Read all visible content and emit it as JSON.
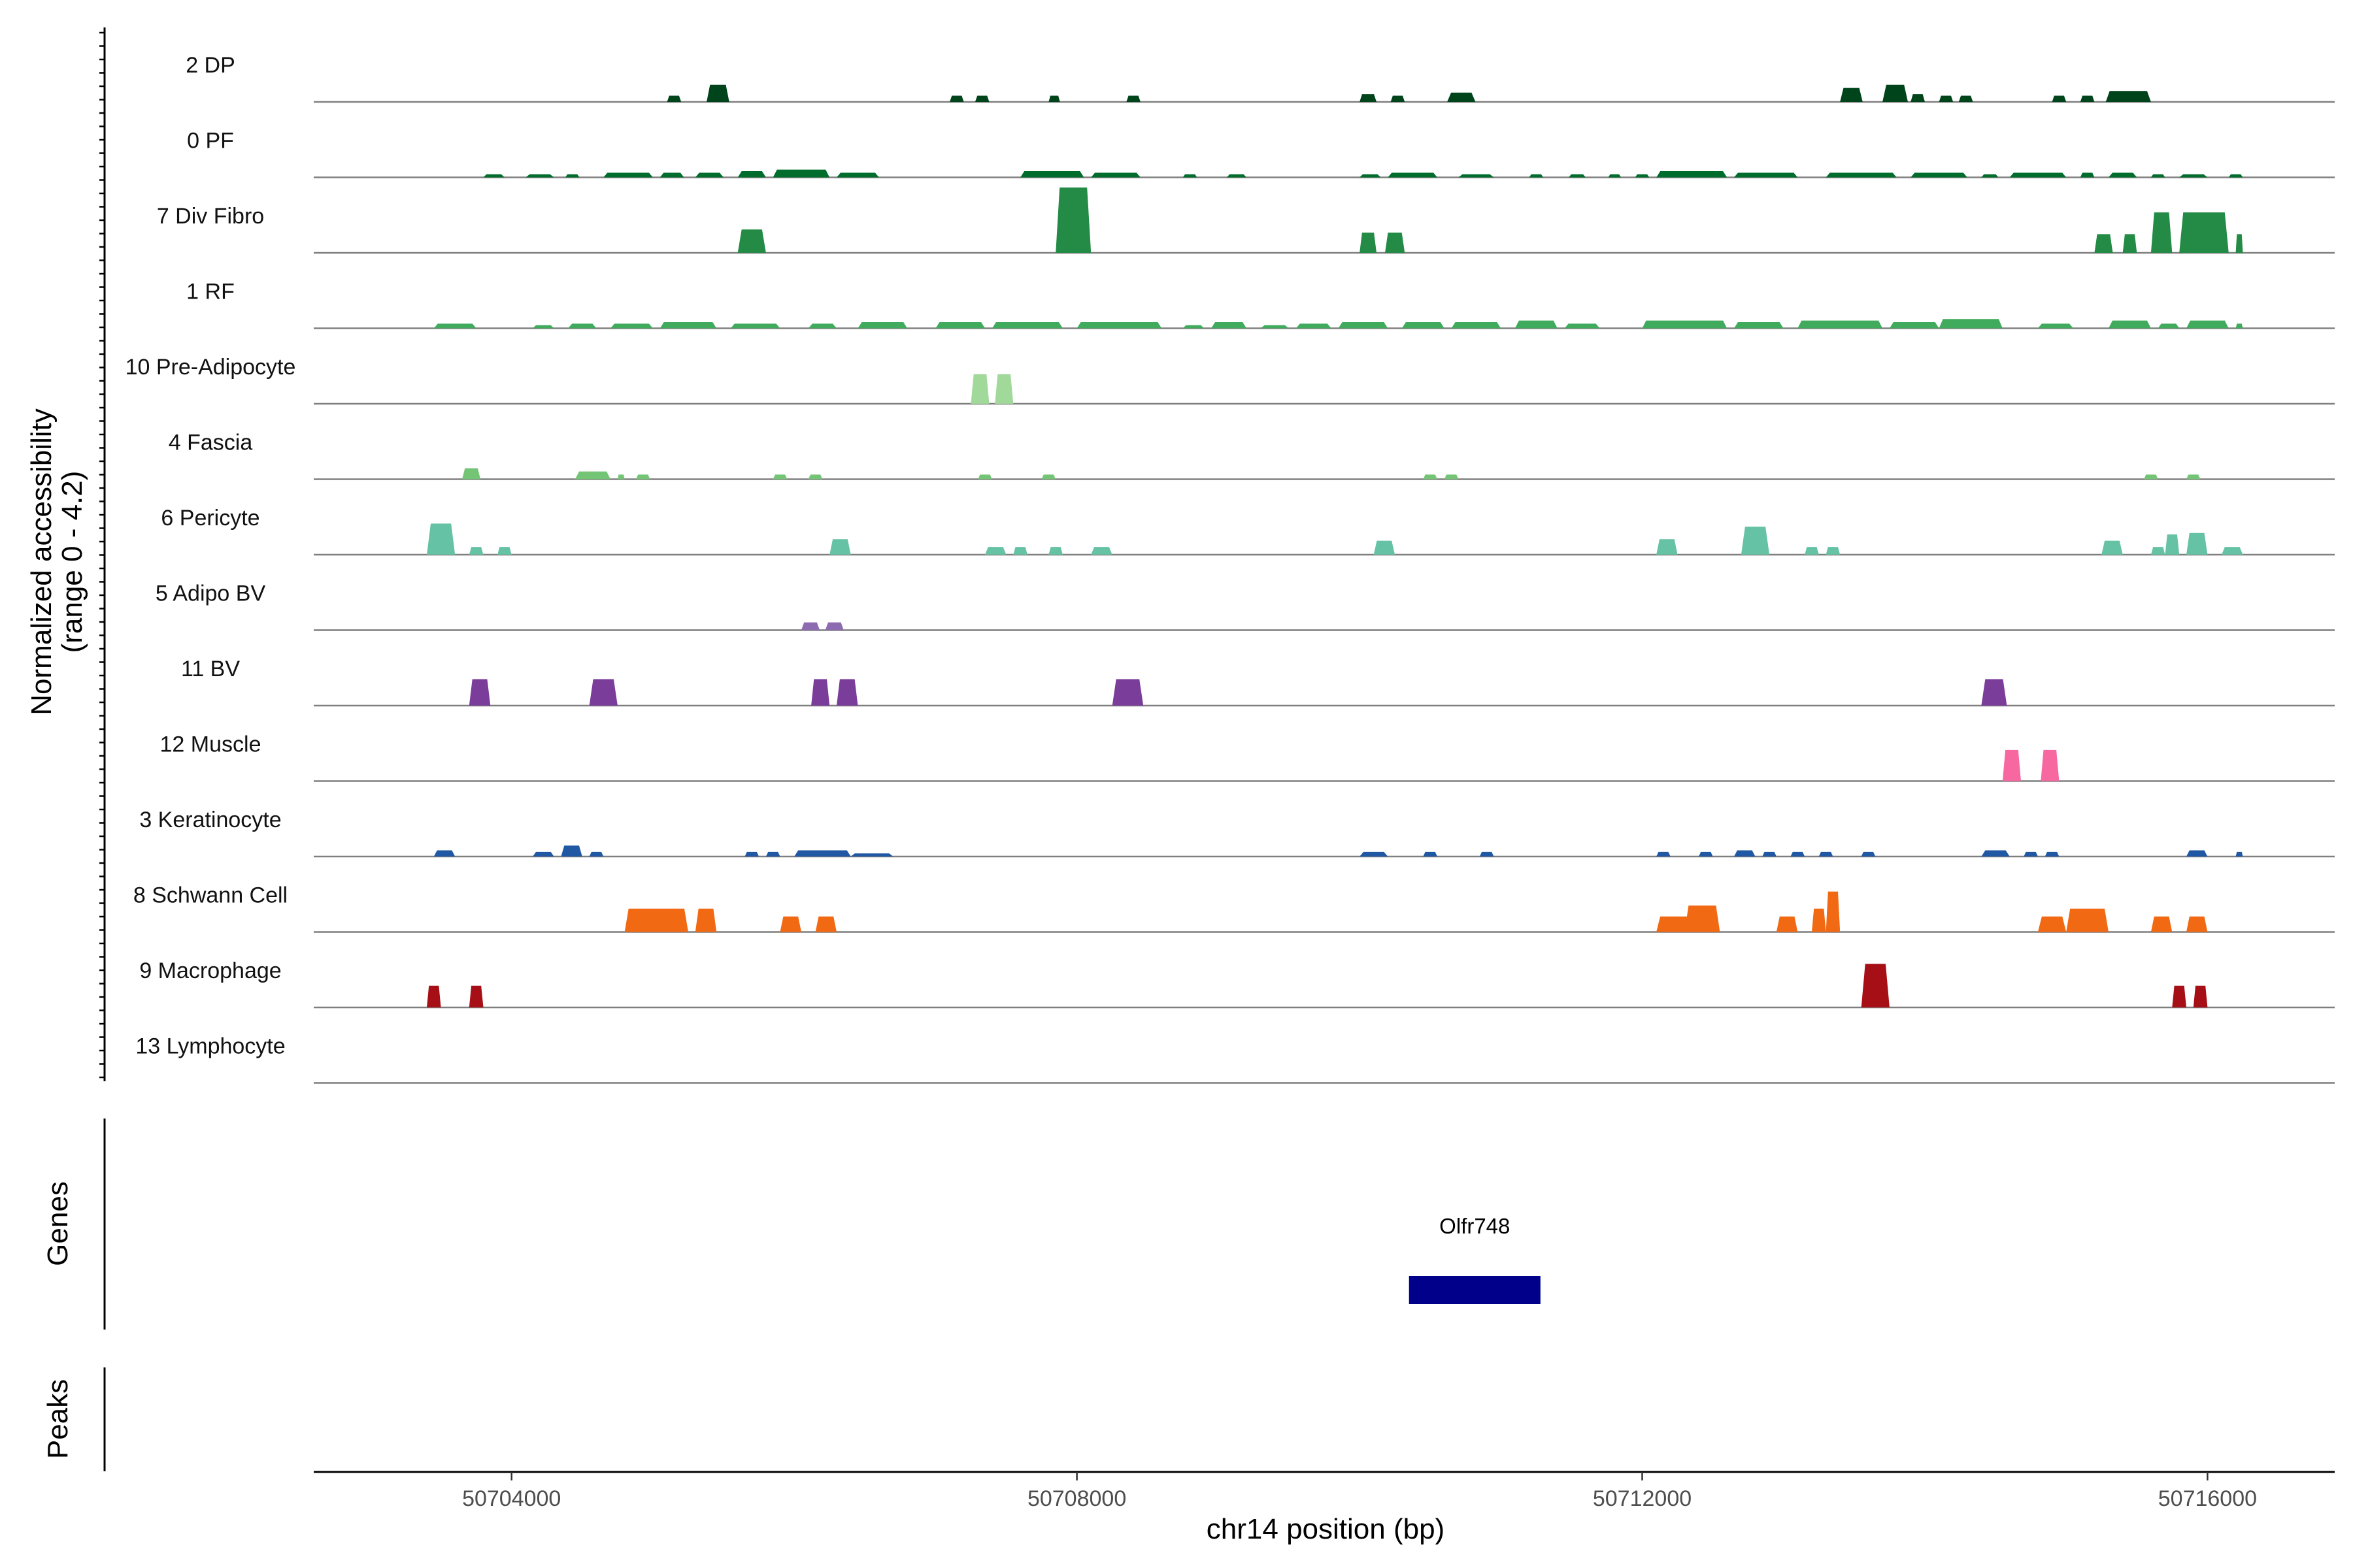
{
  "chart_data": {
    "type": "area",
    "title": "",
    "chromosome": "chr14",
    "xlabel": "chr14 position (bp)",
    "ylabel": "Normalized accessibility\n(range 0 - 4.2)",
    "ylim": [
      0,
      4.2
    ],
    "xlim": [
      50702600,
      50716900
    ],
    "xticks": [
      50704000,
      50708000,
      50712000,
      50716000
    ],
    "xtick_labels": [
      "50704000",
      "50708000",
      "50712000",
      "50716000"
    ],
    "panel_labels": {
      "genes": "Genes",
      "peaks": "Peaks"
    },
    "tracks": [
      {
        "name": "2 DP",
        "color": "#00441b",
        "peaks": [
          [
            50705100,
            50705200,
            0.4
          ],
          [
            50705380,
            50705540,
            1.1
          ],
          [
            50707100,
            50707200,
            0.4
          ],
          [
            50707280,
            50707380,
            0.4
          ],
          [
            50707800,
            50707880,
            0.4
          ],
          [
            50708350,
            50708450,
            0.4
          ],
          [
            50710000,
            50710120,
            0.5
          ],
          [
            50710220,
            50710320,
            0.4
          ],
          [
            50710620,
            50710820,
            0.6
          ],
          [
            50713400,
            50713560,
            0.9
          ],
          [
            50713700,
            50713880,
            1.1
          ],
          [
            50713900,
            50714000,
            0.5
          ],
          [
            50714100,
            50714200,
            0.4
          ],
          [
            50714240,
            50714340,
            0.4
          ],
          [
            50714900,
            50715000,
            0.4
          ],
          [
            50715100,
            50715200,
            0.4
          ],
          [
            50715280,
            50715600,
            0.7
          ]
        ]
      },
      {
        "name": "0 PF",
        "color": "#006d2c",
        "peaks": [
          [
            50703800,
            50703950,
            0.2
          ],
          [
            50704100,
            50704300,
            0.2
          ],
          [
            50704380,
            50704480,
            0.2
          ],
          [
            50704650,
            50705000,
            0.3
          ],
          [
            50705050,
            50705220,
            0.3
          ],
          [
            50705300,
            50705500,
            0.3
          ],
          [
            50705600,
            50705800,
            0.4
          ],
          [
            50705850,
            50706250,
            0.5
          ],
          [
            50706300,
            50706600,
            0.3
          ],
          [
            50707600,
            50708050,
            0.4
          ],
          [
            50708100,
            50708450,
            0.3
          ],
          [
            50708750,
            50708850,
            0.2
          ],
          [
            50709060,
            50709200,
            0.2
          ],
          [
            50710000,
            50710150,
            0.2
          ],
          [
            50710200,
            50710550,
            0.3
          ],
          [
            50710700,
            50710950,
            0.2
          ],
          [
            50711200,
            50711300,
            0.2
          ],
          [
            50711480,
            50711600,
            0.2
          ],
          [
            50711760,
            50711850,
            0.2
          ],
          [
            50711950,
            50712050,
            0.2
          ],
          [
            50712100,
            50712600,
            0.4
          ],
          [
            50712650,
            50713100,
            0.3
          ],
          [
            50713300,
            50713800,
            0.3
          ],
          [
            50713900,
            50714300,
            0.3
          ],
          [
            50714400,
            50714520,
            0.2
          ],
          [
            50714600,
            50715000,
            0.3
          ],
          [
            50715100,
            50715200,
            0.3
          ],
          [
            50715300,
            50715500,
            0.3
          ],
          [
            50715600,
            50715700,
            0.2
          ],
          [
            50715800,
            50716000,
            0.2
          ],
          [
            50716150,
            50716250,
            0.2
          ]
        ]
      },
      {
        "name": "7 Div Fibro",
        "color": "#238b45",
        "peaks": [
          [
            50705600,
            50705800,
            1.5
          ],
          [
            50707850,
            50708100,
            4.2
          ],
          [
            50710000,
            50710120,
            1.3
          ],
          [
            50710180,
            50710320,
            1.3
          ],
          [
            50715200,
            50715330,
            1.2
          ],
          [
            50715400,
            50715500,
            1.2
          ],
          [
            50715600,
            50715750,
            2.6
          ],
          [
            50715800,
            50716150,
            2.6
          ],
          [
            50716200,
            50716250,
            1.2
          ]
        ]
      },
      {
        "name": "1 RF",
        "color": "#41ab5d",
        "peaks": [
          [
            50703450,
            50703750,
            0.3
          ],
          [
            50704150,
            50704300,
            0.2
          ],
          [
            50704400,
            50704600,
            0.3
          ],
          [
            50704700,
            50705000,
            0.3
          ],
          [
            50705050,
            50705450,
            0.4
          ],
          [
            50705550,
            50705900,
            0.3
          ],
          [
            50706100,
            50706300,
            0.3
          ],
          [
            50706450,
            50706800,
            0.4
          ],
          [
            50707000,
            50707350,
            0.4
          ],
          [
            50707400,
            50707900,
            0.4
          ],
          [
            50708000,
            50708600,
            0.4
          ],
          [
            50708750,
            50708900,
            0.2
          ],
          [
            50708950,
            50709200,
            0.4
          ],
          [
            50709300,
            50709500,
            0.2
          ],
          [
            50709550,
            50709800,
            0.3
          ],
          [
            50709850,
            50710200,
            0.4
          ],
          [
            50710300,
            50710600,
            0.4
          ],
          [
            50710650,
            50711000,
            0.4
          ],
          [
            50711100,
            50711400,
            0.5
          ],
          [
            50711450,
            50711700,
            0.3
          ],
          [
            50712000,
            50712600,
            0.5
          ],
          [
            50712650,
            50713000,
            0.4
          ],
          [
            50713100,
            50713700,
            0.5
          ],
          [
            50713750,
            50714100,
            0.4
          ],
          [
            50714100,
            50714550,
            0.6
          ],
          [
            50714800,
            50715050,
            0.3
          ],
          [
            50715300,
            50715600,
            0.5
          ],
          [
            50715650,
            50715800,
            0.3
          ],
          [
            50715850,
            50716150,
            0.5
          ],
          [
            50716200,
            50716250,
            0.3
          ]
        ]
      },
      {
        "name": "10 Pre-Adipocyte",
        "color": "#a1d99b",
        "peaks": [
          [
            50707250,
            50707380,
            1.9
          ],
          [
            50707420,
            50707550,
            1.9
          ]
        ]
      },
      {
        "name": "4 Fascia",
        "color": "#74c476",
        "peaks": [
          [
            50703650,
            50703780,
            0.7
          ],
          [
            50704450,
            50704700,
            0.5
          ],
          [
            50704750,
            50704800,
            0.3
          ],
          [
            50704880,
            50704980,
            0.3
          ],
          [
            50705850,
            50705950,
            0.3
          ],
          [
            50706100,
            50706200,
            0.3
          ],
          [
            50707300,
            50707400,
            0.3
          ],
          [
            50707750,
            50707850,
            0.3
          ],
          [
            50710450,
            50710550,
            0.3
          ],
          [
            50710600,
            50710700,
            0.3
          ],
          [
            50715550,
            50715650,
            0.3
          ],
          [
            50715850,
            50715950,
            0.3
          ]
        ]
      },
      {
        "name": "6 Pericyte",
        "color": "#66c2a4",
        "peaks": [
          [
            50703400,
            50703600,
            2.0
          ],
          [
            50703700,
            50703800,
            0.5
          ],
          [
            50703900,
            50704000,
            0.5
          ],
          [
            50706250,
            50706400,
            1.0
          ],
          [
            50707350,
            50707500,
            0.5
          ],
          [
            50707550,
            50707650,
            0.5
          ],
          [
            50707800,
            50707900,
            0.5
          ],
          [
            50708100,
            50708250,
            0.5
          ],
          [
            50710100,
            50710250,
            0.9
          ],
          [
            50712100,
            50712250,
            1.0
          ],
          [
            50712700,
            50712900,
            1.8
          ],
          [
            50713150,
            50713250,
            0.5
          ],
          [
            50713300,
            50713400,
            0.5
          ],
          [
            50715250,
            50715400,
            0.9
          ],
          [
            50715600,
            50715700,
            0.5
          ],
          [
            50715700,
            50715800,
            1.3
          ],
          [
            50715850,
            50716000,
            1.4
          ],
          [
            50716100,
            50716250,
            0.5
          ]
        ]
      },
      {
        "name": "5 Adipo BV",
        "color": "#8c6bb1",
        "peaks": [
          [
            50706050,
            50706180,
            0.5
          ],
          [
            50706220,
            50706350,
            0.5
          ]
        ]
      },
      {
        "name": "11 BV",
        "color": "#7a3d9a",
        "peaks": [
          [
            50703700,
            50703850,
            1.7
          ],
          [
            50704550,
            50704750,
            1.7
          ],
          [
            50706120,
            50706250,
            1.7
          ],
          [
            50706300,
            50706450,
            1.7
          ],
          [
            50708250,
            50708470,
            1.7
          ],
          [
            50714400,
            50714580,
            1.7
          ]
        ]
      },
      {
        "name": "12 Muscle",
        "color": "#f768a1",
        "peaks": [
          [
            50714550,
            50714680,
            2.0
          ],
          [
            50714820,
            50714950,
            2.0
          ]
        ]
      },
      {
        "name": "3 Keratinocyte",
        "color": "#2158a4",
        "peaks": [
          [
            50703450,
            50703600,
            0.4
          ],
          [
            50704150,
            50704300,
            0.3
          ],
          [
            50704350,
            50704500,
            0.7
          ],
          [
            50704550,
            50704650,
            0.3
          ],
          [
            50705650,
            50705750,
            0.3
          ],
          [
            50705800,
            50705900,
            0.3
          ],
          [
            50706000,
            50706400,
            0.4
          ],
          [
            50706400,
            50706700,
            0.2
          ],
          [
            50710000,
            50710200,
            0.3
          ],
          [
            50710450,
            50710550,
            0.3
          ],
          [
            50710850,
            50710950,
            0.3
          ],
          [
            50712100,
            50712200,
            0.3
          ],
          [
            50712400,
            50712500,
            0.3
          ],
          [
            50712650,
            50712800,
            0.4
          ],
          [
            50712850,
            50712950,
            0.3
          ],
          [
            50713050,
            50713150,
            0.3
          ],
          [
            50713250,
            50713350,
            0.3
          ],
          [
            50713550,
            50713650,
            0.3
          ],
          [
            50714400,
            50714600,
            0.4
          ],
          [
            50714700,
            50714800,
            0.3
          ],
          [
            50714850,
            50714950,
            0.3
          ],
          [
            50715850,
            50716000,
            0.4
          ],
          [
            50716200,
            50716250,
            0.3
          ]
        ]
      },
      {
        "name": "8 Schwann Cell",
        "color": "#f16913",
        "peaks": [
          [
            50704800,
            50705250,
            1.5
          ],
          [
            50705300,
            50705450,
            1.5
          ],
          [
            50705900,
            50706050,
            1.0
          ],
          [
            50706150,
            50706300,
            1.0
          ],
          [
            50712100,
            50712350,
            1.0
          ],
          [
            50712300,
            50712550,
            1.7
          ],
          [
            50712950,
            50713100,
            1.0
          ],
          [
            50713200,
            50713300,
            1.5
          ],
          [
            50713300,
            50713400,
            2.6
          ],
          [
            50714800,
            50715000,
            1.0
          ],
          [
            50715000,
            50715300,
            1.5
          ],
          [
            50715600,
            50715750,
            1.0
          ],
          [
            50715850,
            50716000,
            1.0
          ]
        ]
      },
      {
        "name": "9 Macrophage",
        "color": "#a50f15",
        "peaks": [
          [
            50703400,
            50703500,
            1.4
          ],
          [
            50703700,
            50703800,
            1.4
          ],
          [
            50713550,
            50713750,
            2.8
          ],
          [
            50715750,
            50715850,
            1.4
          ],
          [
            50715900,
            50716000,
            1.4
          ]
        ]
      },
      {
        "name": "13 Lymphocyte",
        "color": "#525252",
        "peaks": []
      }
    ],
    "genes": [
      {
        "name": "Olfr748",
        "start": 50710350,
        "end": 50711280,
        "color": "#00008b"
      }
    ]
  }
}
